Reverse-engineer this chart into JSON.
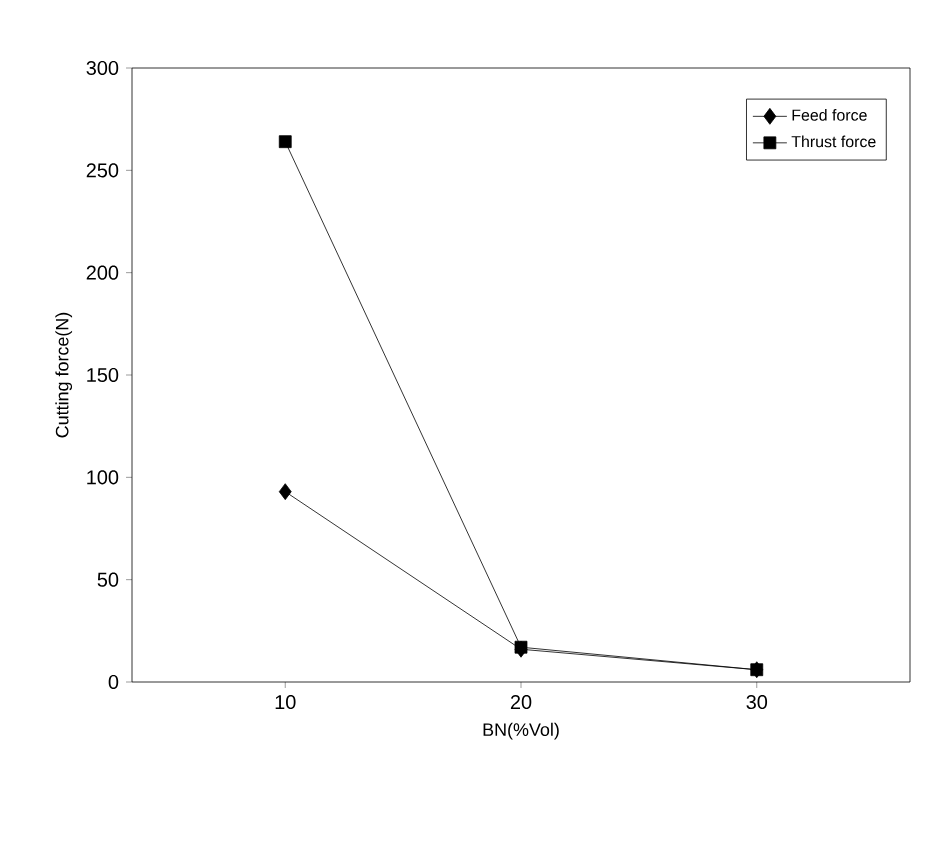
{
  "chart_data": {
    "type": "line",
    "xlabel": "BN(%Vol)",
    "ylabel": "Cutting force(N)",
    "x": [
      10,
      20,
      30
    ],
    "xlim": [
      3.5,
      36.5
    ],
    "xticks": [
      10,
      20,
      30
    ],
    "ylim": [
      0,
      300
    ],
    "yticks": [
      0,
      50,
      100,
      150,
      200,
      250,
      300
    ],
    "legend": "top right",
    "grid": false,
    "line_style": "solid",
    "series": [
      {
        "name": "Feed force",
        "color": "#000000",
        "marker": "diamond",
        "values": [
          93,
          16,
          6
        ]
      },
      {
        "name": "Thrust force",
        "color": "#000000",
        "marker": "square",
        "values": [
          264,
          17,
          6
        ]
      }
    ]
  }
}
